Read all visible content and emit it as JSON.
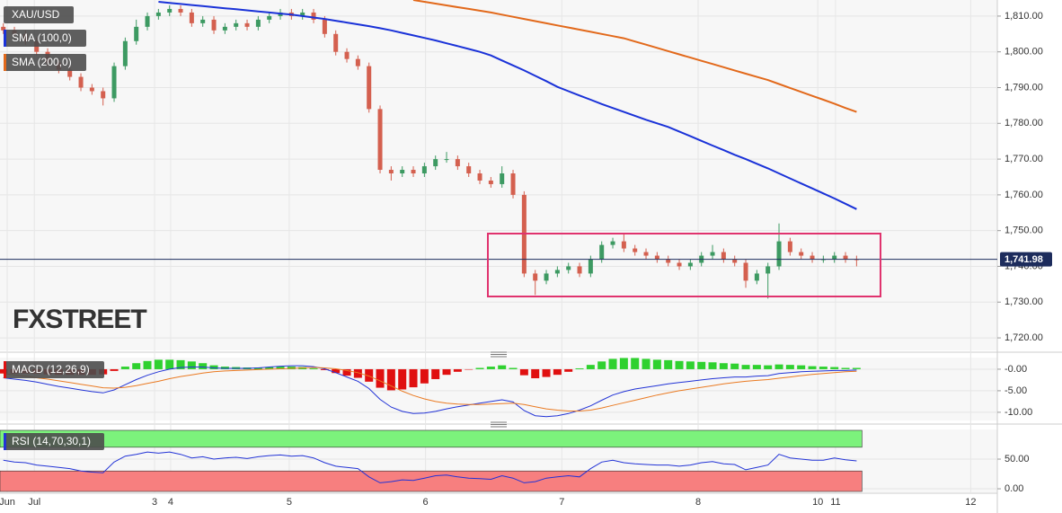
{
  "chart_data": [
    {
      "type": "candlestick",
      "title": "XAU/USD",
      "watermark": "FXSTREET",
      "up_color": "#3d9a62",
      "down_color": "#d4604f",
      "xlim": [
        -0.3,
        89.7
      ],
      "xticks": [
        {
          "value": 0.35,
          "label": "Jun"
        },
        {
          "value": 2.8,
          "label": "Jul"
        },
        {
          "value": 13.65,
          "label": "3"
        },
        {
          "value": 15.1,
          "label": "4"
        },
        {
          "value": 25.8,
          "label": "5"
        },
        {
          "value": 38.1,
          "label": "6"
        },
        {
          "value": 50.4,
          "label": "7"
        },
        {
          "value": 62.7,
          "label": "8"
        },
        {
          "value": 73.5,
          "label": "10"
        },
        {
          "value": 75.1,
          "label": "11"
        },
        {
          "value": 87.3,
          "label": "12"
        }
      ],
      "ylim": [
        1716.5,
        1814.5
      ],
      "yticks": [
        {
          "value": 1720,
          "label": "1,720.00"
        },
        {
          "value": 1730,
          "label": "1,730.00"
        },
        {
          "value": 1740,
          "label": "1,740.00"
        },
        {
          "value": 1750,
          "label": "1,750.00"
        },
        {
          "value": 1760,
          "label": "1,760.00"
        },
        {
          "value": 1770,
          "label": "1,770.00"
        },
        {
          "value": 1780,
          "label": "1,780.00"
        },
        {
          "value": 1790,
          "label": "1,790.00"
        },
        {
          "value": 1800,
          "label": "1,800.00"
        },
        {
          "value": 1810,
          "label": "1,810.00"
        }
      ],
      "grid": true,
      "last_price": {
        "value": 1741.98,
        "label": "1,741.98"
      },
      "open": [
        1807,
        1806,
        1805,
        1803,
        1800,
        1797,
        1795,
        1793,
        1790,
        1789,
        1787,
        1796,
        1803,
        1807,
        1810,
        1811,
        1812,
        1811,
        1808,
        1809,
        1806,
        1807,
        1808,
        1807,
        1809,
        1810,
        1811,
        1810,
        1811,
        1809,
        1805,
        1800,
        1798,
        1796,
        1784,
        1767,
        1766,
        1767,
        1766,
        1768,
        1770,
        1770,
        1768,
        1766,
        1764,
        1763,
        1766,
        1760,
        1738,
        1736,
        1738,
        1739,
        1740,
        1738,
        1742,
        1746,
        1747,
        1745,
        1744,
        1743,
        1742,
        1741,
        1740,
        1741,
        1743,
        1744,
        1742,
        1741,
        1736,
        1738,
        1740,
        1747,
        1744,
        1743,
        1742,
        1742,
        1743,
        1742
      ],
      "high": [
        1808,
        1807,
        1806,
        1804,
        1801,
        1798,
        1796,
        1794,
        1791,
        1790,
        1797,
        1804,
        1809,
        1811,
        1812,
        1813,
        1813,
        1812,
        1810,
        1810,
        1808,
        1809,
        1809,
        1810,
        1811,
        1812,
        1812,
        1812,
        1812,
        1810,
        1806,
        1801,
        1799,
        1797,
        1785,
        1768,
        1768,
        1768,
        1769,
        1771,
        1772,
        1771,
        1769,
        1767,
        1765,
        1768,
        1767,
        1761,
        1739,
        1739,
        1740,
        1741,
        1741,
        1743,
        1747,
        1748,
        1749,
        1746,
        1745,
        1744,
        1743,
        1742,
        1742,
        1744,
        1746,
        1745,
        1743,
        1742,
        1739,
        1741,
        1752,
        1748,
        1745,
        1744,
        1743,
        1744,
        1744,
        1743
      ],
      "low": [
        1805,
        1804,
        1802,
        1799,
        1796,
        1794,
        1792,
        1789,
        1788,
        1785,
        1786,
        1795,
        1802,
        1806,
        1809,
        1810,
        1810,
        1807,
        1807,
        1805,
        1805,
        1806,
        1806,
        1806,
        1808,
        1809,
        1809,
        1809,
        1808,
        1804,
        1799,
        1797,
        1795,
        1783,
        1766,
        1764,
        1765,
        1765,
        1765,
        1767,
        1769,
        1767,
        1765,
        1763,
        1762,
        1762,
        1759,
        1737,
        1732,
        1735,
        1737,
        1738,
        1737,
        1737,
        1741,
        1745,
        1744,
        1743,
        1742,
        1741,
        1740,
        1739,
        1739,
        1740,
        1742,
        1741,
        1740,
        1734,
        1735,
        1731,
        1739,
        1743,
        1742,
        1741,
        1741,
        1741,
        1741,
        1740
      ],
      "close": [
        1806,
        1805,
        1803,
        1800,
        1797,
        1795,
        1793,
        1790,
        1789,
        1787,
        1796,
        1803,
        1807,
        1810,
        1811,
        1812,
        1811,
        1808,
        1809,
        1806,
        1807,
        1808,
        1807,
        1809,
        1810,
        1811,
        1810,
        1811,
        1809,
        1805,
        1800,
        1798,
        1796,
        1784,
        1767,
        1766,
        1767,
        1766,
        1768,
        1770,
        1770,
        1768,
        1766,
        1764,
        1763,
        1766,
        1760,
        1738,
        1736,
        1738,
        1739,
        1740,
        1738,
        1742,
        1746,
        1747,
        1745,
        1744,
        1743,
        1742,
        1741,
        1740,
        1741,
        1743,
        1744,
        1742,
        1741,
        1736,
        1738,
        1740,
        1747,
        1744,
        1743,
        1742,
        1742,
        1743,
        1742,
        1741.98
      ],
      "series": [
        {
          "name": "SMA (100,0)",
          "color": "#1a32d8",
          "values": [
            null,
            null,
            null,
            null,
            null,
            null,
            null,
            null,
            null,
            null,
            null,
            null,
            null,
            null,
            1814,
            1813.7,
            1813.4,
            1813.1,
            1812.8,
            1812.5,
            1812.2,
            1811.9,
            1811.6,
            1811.3,
            1811,
            1810.7,
            1810.4,
            1810,
            1809.6,
            1809.2,
            1808.7,
            1808.2,
            1807.7,
            1807.2,
            1806.6,
            1806,
            1805.3,
            1804.6,
            1803.9,
            1803.2,
            1802.4,
            1801.6,
            1800.8,
            1800,
            1799,
            1797.6,
            1796.2,
            1794.8,
            1793.3,
            1791.8,
            1790.2,
            1789,
            1787.8,
            1786.6,
            1785.4,
            1784.3,
            1783.2,
            1782.1,
            1781,
            1780,
            1779,
            1777.7,
            1776.4,
            1775.1,
            1773.8,
            1772.5,
            1771.2,
            1770,
            1768.7,
            1767.4,
            1766,
            1764.6,
            1763.2,
            1761.8,
            1760.4,
            1759,
            1757.5,
            1756
          ]
        },
        {
          "name": "SMA (200,0)",
          "color": "#e2691b",
          "values": [
            null,
            null,
            null,
            null,
            null,
            null,
            null,
            null,
            null,
            null,
            null,
            null,
            null,
            null,
            null,
            null,
            null,
            null,
            null,
            null,
            null,
            null,
            null,
            null,
            null,
            null,
            null,
            null,
            null,
            null,
            null,
            null,
            null,
            null,
            null,
            null,
            null,
            1814.5,
            1814,
            1813.5,
            1813,
            1812.5,
            1812,
            1811.5,
            1811,
            1810.4,
            1809.8,
            1809.2,
            1808.6,
            1808,
            1807.4,
            1806.8,
            1806.2,
            1805.6,
            1805,
            1804.4,
            1803.8,
            1802.9,
            1802,
            1801.1,
            1800.2,
            1799.3,
            1798.4,
            1797.5,
            1796.6,
            1795.7,
            1794.8,
            1793.9,
            1793,
            1792.1,
            1791,
            1789.9,
            1788.8,
            1787.7,
            1786.6,
            1785.5,
            1784.3,
            1783.2
          ]
        }
      ]
    },
    {
      "type": "combo",
      "label": "MACD (12,26,9)",
      "ylim": [
        -11.9,
        2.7
      ],
      "yticks": [
        {
          "value": 0,
          "label": "-0.00"
        },
        {
          "value": -5,
          "label": "-5.00"
        },
        {
          "value": -10,
          "label": "-10.00"
        }
      ],
      "positive_color": "#2fd12f",
      "negative_color": "#e01010",
      "histogram": [
        -1,
        -1,
        -1,
        -1,
        -1.2,
        -1.3,
        -1.3,
        -1.3,
        -1.3,
        -1.2,
        -0.4,
        0.6,
        1.4,
        1.9,
        2.2,
        2.2,
        2.1,
        1.8,
        1.4,
        0.9,
        0.6,
        0.5,
        0.4,
        0.4,
        0.5,
        0.6,
        0.6,
        0.5,
        0.2,
        -0.2,
        -0.9,
        -1.5,
        -2,
        -2.9,
        -4.3,
        -4.9,
        -4.7,
        -4.2,
        -3.3,
        -2.3,
        -1.3,
        -0.6,
        -0.1,
        0.3,
        0.6,
        0.9,
        0.3,
        -1.4,
        -2.1,
        -1.8,
        -1.3,
        -0.6,
        0.2,
        1,
        1.8,
        2.4,
        2.6,
        2.6,
        2.4,
        2.2,
        2.1,
        1.9,
        1.8,
        1.7,
        1.6,
        1.4,
        1.3,
        1,
        1,
        0.9,
        1.1,
        1,
        0.9,
        0.7,
        0.6,
        0.5,
        0.3,
        0.3
      ],
      "series": [
        {
          "color": "#2233d6",
          "values": [
            -2,
            -2.3,
            -2.6,
            -3,
            -3.5,
            -4,
            -4.4,
            -4.8,
            -5.2,
            -5.5,
            -4.8,
            -3.6,
            -2.4,
            -1.4,
            -0.6,
            0,
            0.4,
            0.5,
            0.5,
            0.3,
            0.2,
            0.2,
            0.2,
            0.3,
            0.5,
            0.7,
            0.8,
            0.8,
            0.6,
            0.1,
            -0.8,
            -1.8,
            -2.8,
            -4.5,
            -7,
            -8.8,
            -9.8,
            -10.3,
            -10.2,
            -9.8,
            -9.2,
            -8.7,
            -8.3,
            -7.9,
            -7.5,
            -7.1,
            -7.6,
            -9.6,
            -10.8,
            -11,
            -10.8,
            -10.3,
            -9.5,
            -8.5,
            -7.2,
            -6,
            -5.2,
            -4.6,
            -4.2,
            -3.8,
            -3.4,
            -3.1,
            -2.8,
            -2.5,
            -2.2,
            -2,
            -1.8,
            -1.8,
            -1.6,
            -1.5,
            -1,
            -0.8,
            -0.6,
            -0.5,
            -0.4,
            -0.3,
            -0.3,
            -0.2
          ]
        },
        {
          "color": "#ea7a22",
          "values": [
            -1,
            -1.3,
            -1.6,
            -2,
            -2.3,
            -2.7,
            -3.1,
            -3.5,
            -3.9,
            -4.3,
            -4.4,
            -4.2,
            -3.8,
            -3.3,
            -2.8,
            -2.2,
            -1.7,
            -1.3,
            -0.9,
            -0.6,
            -0.4,
            -0.3,
            -0.2,
            -0.1,
            0,
            0.1,
            0.2,
            0.3,
            0.4,
            0.3,
            0.1,
            -0.3,
            -0.8,
            -1.6,
            -2.7,
            -3.9,
            -5.1,
            -6.1,
            -6.9,
            -7.5,
            -7.9,
            -8.1,
            -8.2,
            -8.2,
            -8.1,
            -8,
            -7.9,
            -8.2,
            -8.7,
            -9.2,
            -9.5,
            -9.7,
            -9.7,
            -9.5,
            -9,
            -8.4,
            -7.8,
            -7.2,
            -6.6,
            -6,
            -5.5,
            -5,
            -4.6,
            -4.2,
            -3.8,
            -3.4,
            -3.1,
            -2.8,
            -2.6,
            -2.4,
            -2.1,
            -1.8,
            -1.5,
            -1.2,
            -1,
            -0.8,
            -0.6,
            -0.5
          ]
        }
      ]
    },
    {
      "type": "line",
      "label": "RSI (14,70,30,1)",
      "ylim": [
        -6,
        100
      ],
      "yticks": [
        {
          "value": 50,
          "label": "50.00"
        },
        {
          "value": 0,
          "label": "0.00"
        }
      ],
      "upper": 70,
      "lower": 30,
      "upper_color": "#7cf27c",
      "lower_color": "#f77f7f",
      "series": [
        {
          "color": "#2233d6",
          "values": [
            48,
            45,
            44,
            40,
            38,
            36,
            34,
            30,
            28,
            27,
            45,
            55,
            58,
            62,
            60,
            62,
            58,
            52,
            54,
            50,
            52,
            53,
            51,
            54,
            56,
            57,
            55,
            56,
            52,
            44,
            38,
            36,
            34,
            20,
            10,
            12,
            15,
            14,
            18,
            22,
            23,
            20,
            18,
            17,
            16,
            22,
            18,
            10,
            12,
            18,
            20,
            22,
            20,
            34,
            45,
            48,
            44,
            42,
            41,
            40,
            40,
            38,
            40,
            44,
            46,
            42,
            41,
            32,
            36,
            40,
            58,
            52,
            50,
            48,
            48,
            52,
            49,
            47
          ]
        }
      ]
    }
  ]
}
